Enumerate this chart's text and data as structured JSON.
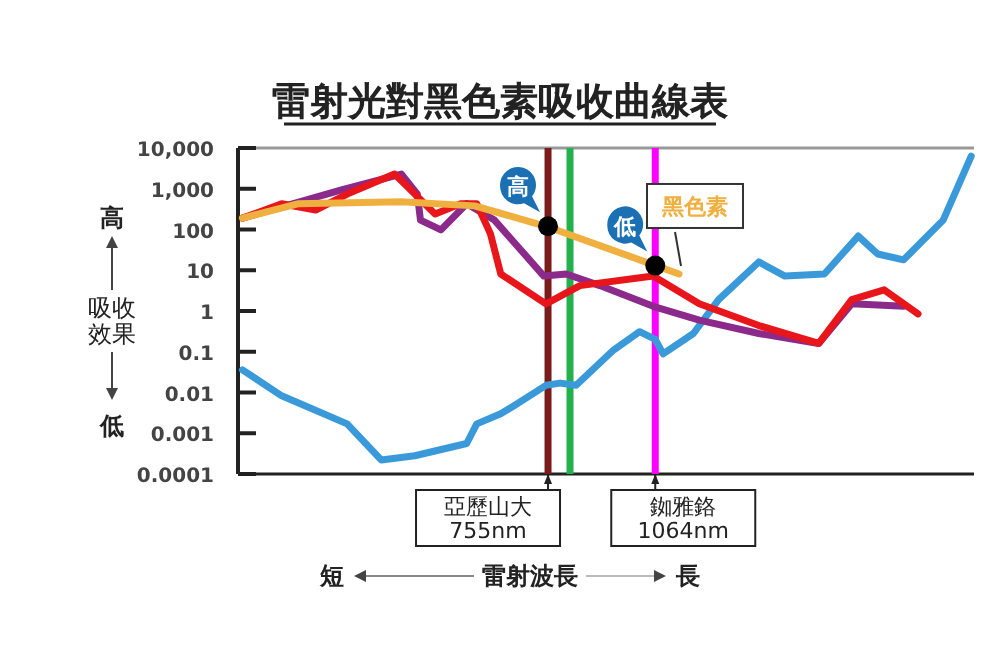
{
  "chart_data": {
    "type": "line",
    "title": "雷射光對黑色素吸收曲線表",
    "xlabel": "雷射波長",
    "ylabel": "吸收效果",
    "log": "xy",
    "grid": false,
    "tick_labels": "y",
    "marker": "none",
    "line_style": "solid",
    "xlim": [
      280,
      2950
    ],
    "ylim": [
      0.0001,
      10000
    ],
    "yticks": [
      {
        "value": 10000,
        "label": "10,000"
      },
      {
        "value": 1000,
        "label": "1,000"
      },
      100,
      10,
      1,
      0.1,
      0.01,
      0.001,
      0.0001
    ],
    "series": [
      {
        "color": "#3a9ad9",
        "x": [
          284,
          322,
          397,
          443,
          493,
          582,
          601,
          649,
          678,
          750,
          785,
          826,
          931,
          1012,
          1064,
          1091,
          1202,
          1303,
          1482,
          1611,
          1828,
          2037,
          2168,
          2355,
          2673,
          2924
        ],
        "values": [
          0.036,
          0.0083,
          0.0017,
          0.00022,
          0.00028,
          0.00056,
          0.0017,
          0.003,
          0.0048,
          0.015,
          0.017,
          0.015,
          0.11,
          0.31,
          0.2,
          0.089,
          0.28,
          1.9,
          16,
          7.2,
          8.1,
          69,
          25,
          18,
          170,
          6300
        ]
      },
      {
        "color": "#8b2a8a",
        "x": [
          284,
          390,
          472,
          497,
          502,
          536,
          582,
          636,
          745,
          800,
          891,
          1057,
          1225,
          1482,
          1795,
          1995,
          2355
        ],
        "values": [
          190,
          940,
          2300,
          740,
          170,
          98,
          430,
          170,
          7.2,
          8.1,
          4.2,
          1.3,
          0.6,
          0.28,
          0.16,
          1.5,
          1.3
        ]
      },
      {
        "color": "#e8151b",
        "x": [
          284,
          322,
          359,
          397,
          462,
          493,
          526,
          571,
          601,
          628,
          649,
          750,
          836,
          1057,
          1225,
          1482,
          1795,
          1995,
          2213,
          2466
        ],
        "values": [
          190,
          430,
          300,
          740,
          2300,
          740,
          240,
          430,
          430,
          78,
          8.1,
          1.5,
          4.2,
          7.2,
          1.5,
          0.44,
          0.16,
          1.9,
          3.3,
          0.85
        ]
      },
      {
        "name": "黑色素",
        "color": "#f0b040",
        "x": [
          284,
          340,
          472,
          597,
          750,
          1148
        ],
        "values": [
          190,
          430,
          480,
          380,
          120,
          8.1
        ]
      },
      {
        "type": "scatter",
        "marker": "circle",
        "color": "#000000",
        "x": [
          755,
          1064
        ],
        "values": [
          120,
          13
        ]
      }
    ],
    "ref_lines": [
      {
        "axis": "x",
        "value": 755,
        "label": "亞歷山大\n755nm",
        "color": "#7a1c1c"
      },
      {
        "axis": "x",
        "value": 810,
        "color": "#22b14c"
      },
      {
        "axis": "x",
        "value": 1064,
        "label": "銣雅鉻\n1064nm",
        "color": "#ff00ff"
      }
    ],
    "annotations": [
      {
        "text": "高",
        "x": 755,
        "y": 120
      },
      {
        "text": "低",
        "x": 1064,
        "y": 13
      },
      "高",
      "低",
      "短",
      "長"
    ]
  }
}
